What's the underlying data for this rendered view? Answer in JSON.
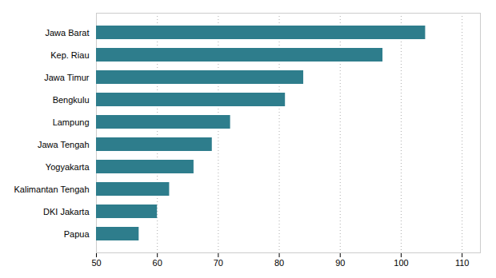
{
  "chart_data": {
    "type": "bar",
    "orientation": "horizontal",
    "categories": [
      "Papua",
      "DKI Jakarta",
      "Kalimantan Tengah",
      "Yogyakarta",
      "Jawa Tengah",
      "Lampung",
      "Bengkulu",
      "Jawa Timur",
      "Kep. Riau",
      "Jawa Barat"
    ],
    "values": [
      57,
      60,
      62,
      66,
      69,
      72,
      81,
      84,
      97,
      104
    ],
    "color": "#2e7d8c",
    "xlim": [
      50,
      113
    ],
    "xticks": [
      50,
      60,
      70,
      80,
      90,
      100,
      110
    ],
    "grid": true
  }
}
